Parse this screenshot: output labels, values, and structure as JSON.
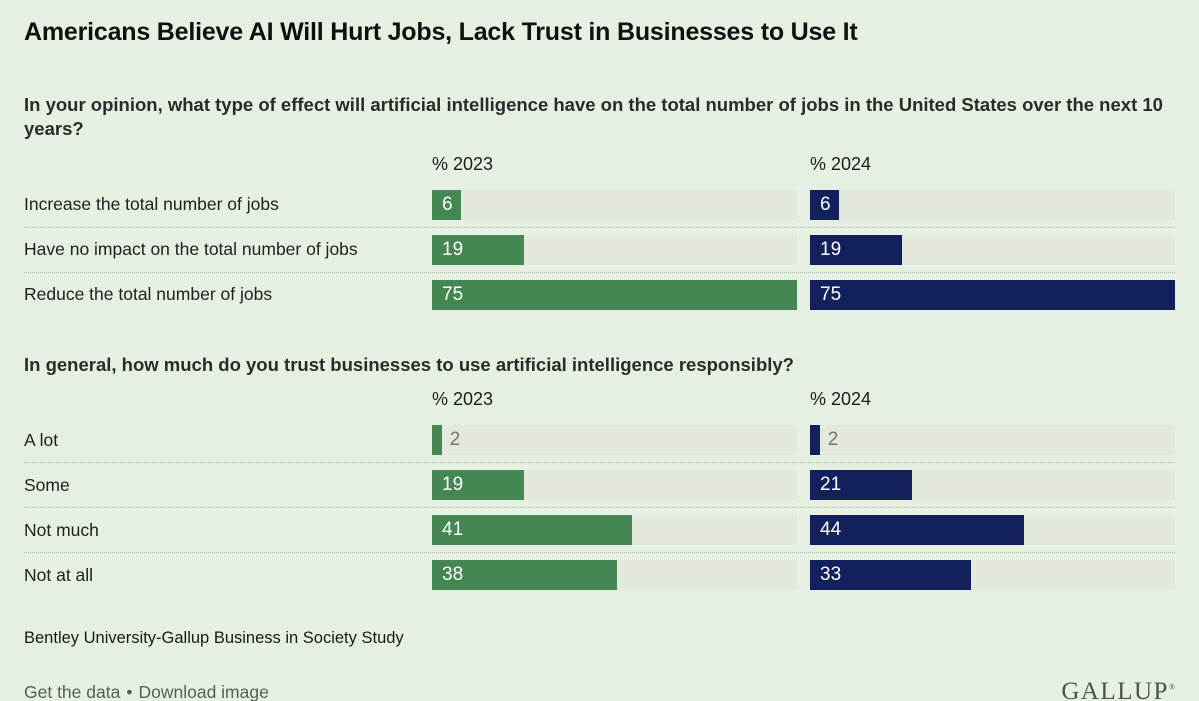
{
  "page": {
    "title": "Americans Believe AI Will Hurt Jobs, Lack Trust in Businesses to Use It",
    "source": "Bentley University-Gallup Business in Society Study",
    "footer": {
      "link1": "Get the data",
      "separator": "•",
      "link2": "Download image",
      "logo": "GALLUP",
      "logo_mark": "®"
    }
  },
  "colors": {
    "background": "#e5f0e2",
    "bar_track": "#e2e8db",
    "series_2023_green": "#448753",
    "series_2024_navy": "#12215c",
    "outside_value_text": "#6f776e",
    "dotted_separator": "#a9b4a5"
  },
  "chart_data": [
    {
      "type": "bar",
      "orientation": "horizontal",
      "title": "In your opinion, what type of effect will artificial intelligence have on the total number of jobs in the United States over the next 10 years?",
      "categories": [
        "Increase the total number of jobs",
        "Have no impact on the total number of jobs",
        "Reduce the total number of jobs"
      ],
      "series": [
        {
          "name": "% 2023",
          "color": "#448753",
          "values": [
            6,
            19,
            75
          ]
        },
        {
          "name": "% 2024",
          "color": "#12215c",
          "values": [
            6,
            19,
            75
          ]
        }
      ],
      "value_unit": "percent",
      "xlim": [
        0,
        75
      ],
      "grid": false,
      "legend_position": "column-headers",
      "data_labels": "inside-left"
    },
    {
      "type": "bar",
      "orientation": "horizontal",
      "title": "In general, how much do you trust businesses to use artificial intelligence responsibly?",
      "categories": [
        "A lot",
        "Some",
        "Not much",
        "Not at all"
      ],
      "series": [
        {
          "name": "% 2023",
          "color": "#448753",
          "values": [
            2,
            19,
            41,
            38
          ]
        },
        {
          "name": "% 2024",
          "color": "#12215c",
          "values": [
            2,
            21,
            44,
            33
          ]
        }
      ],
      "value_unit": "percent",
      "xlim": [
        0,
        75
      ],
      "grid": false,
      "legend_position": "column-headers",
      "data_labels": "inside-left-or-outside-when-small"
    }
  ]
}
